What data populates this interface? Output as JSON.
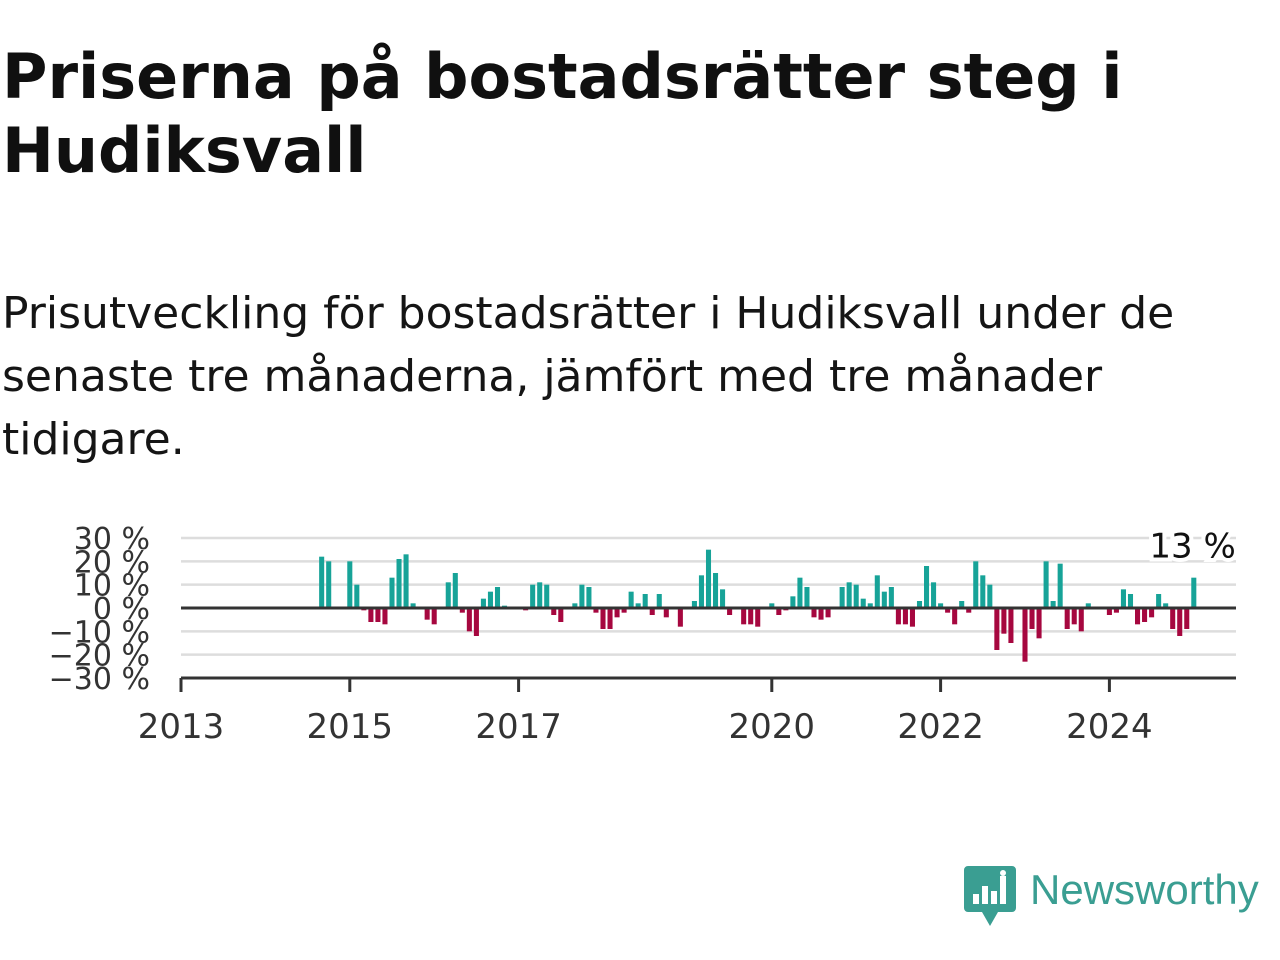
{
  "title": "Priserna på bostadsrätter steg i Hudiksvall",
  "subtitle": "Prisutveckling för bostadsrätter i Hudiksvall under de senaste tre månaderna, jämfört med tre månader tidigare.",
  "brand": {
    "name": "Newsworthy",
    "color": "#3a9e92",
    "icon": "newsworthy-logo-icon"
  },
  "colors": {
    "positive": "#17a398",
    "negative": "#a6073f",
    "grid": "#dddddd",
    "zero_line": "#333333"
  },
  "chart_data": {
    "type": "bar",
    "title": "",
    "xlabel": "",
    "ylabel": "",
    "ylim": [
      -30,
      30
    ],
    "yticks": [
      {
        "value": 30,
        "label": "30 %"
      },
      {
        "value": 20,
        "label": "20 %"
      },
      {
        "value": 10,
        "label": "10 %"
      },
      {
        "value": 0,
        "label": "0 %"
      },
      {
        "value": -10,
        "label": "−10 %"
      },
      {
        "value": -20,
        "label": "−20 %"
      },
      {
        "value": -30,
        "label": "−30 %"
      }
    ],
    "xlim": [
      2013.0,
      2025.5
    ],
    "xticks": [
      {
        "value": 2013,
        "label": "2013"
      },
      {
        "value": 2015,
        "label": "2015"
      },
      {
        "value": 2017,
        "label": "2017"
      },
      {
        "value": 2020,
        "label": "2020"
      },
      {
        "value": 2022,
        "label": "2022"
      },
      {
        "value": 2024,
        "label": "2024"
      }
    ],
    "grid": true,
    "x_start": "2014-09",
    "interval": "month",
    "values": [
      22,
      20,
      0,
      0,
      20,
      10,
      -1,
      -6,
      -6,
      -7,
      13,
      21,
      23,
      2,
      0,
      -5,
      -7,
      0,
      11,
      15,
      -2,
      -10,
      -12,
      4,
      7,
      9,
      1,
      0,
      0,
      -1,
      10,
      11,
      10,
      -3,
      -6,
      0,
      2,
      10,
      9,
      -2,
      -9,
      -9,
      -4,
      -2,
      7,
      2,
      6,
      -3,
      6,
      -4,
      0,
      -8,
      0,
      3,
      14,
      25,
      15,
      8,
      -3,
      0,
      -7,
      -7,
      -8,
      0,
      2,
      -3,
      -1,
      5,
      13,
      9,
      -4,
      -5,
      -4,
      0,
      9,
      11,
      10,
      4,
      2,
      14,
      7,
      9,
      -7,
      -7,
      -8,
      3,
      18,
      11,
      2,
      -2,
      -7,
      3,
      -2,
      20,
      14,
      10,
      -18,
      -11,
      -15,
      0,
      -23,
      -9,
      -13,
      20,
      3,
      19,
      -9,
      -7,
      -10,
      2,
      0,
      0,
      -3,
      -2,
      8,
      6,
      -7,
      -6,
      -4,
      6,
      2,
      -9,
      -12,
      -9,
      13
    ],
    "last_value_label": "13 %"
  }
}
